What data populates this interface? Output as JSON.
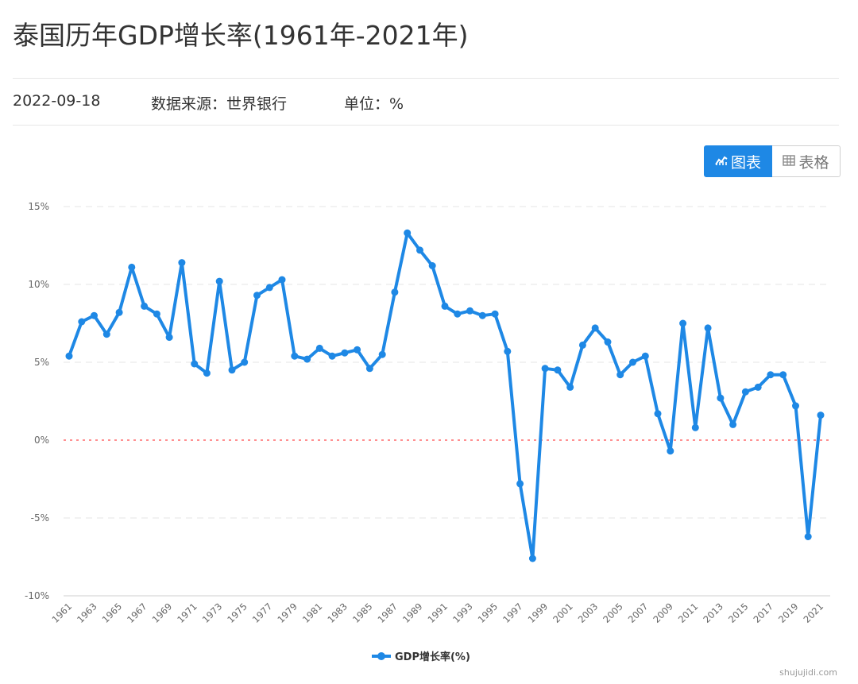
{
  "header": {
    "title": "泰国历年GDP增长率(1961年-2021年)",
    "date": "2022-09-18",
    "source": "数据来源：世界银行",
    "unit": "单位：%"
  },
  "view_toggle": {
    "chart_label": "图表",
    "table_label": "表格",
    "chart_icon": "line-chart-icon",
    "table_icon": "table-icon",
    "active": "chart"
  },
  "watermark": "shujujidi.com",
  "colors": {
    "series": "#1e88e5",
    "zero_line": "#ff4d4f",
    "grid": "#e6e6e6",
    "active_button": "#1e88e5"
  },
  "chart_data": {
    "type": "line",
    "x": [
      "1961",
      "1962",
      "1963",
      "1964",
      "1965",
      "1966",
      "1967",
      "1968",
      "1969",
      "1970",
      "1971",
      "1972",
      "1973",
      "1974",
      "1975",
      "1976",
      "1977",
      "1978",
      "1979",
      "1980",
      "1981",
      "1982",
      "1983",
      "1984",
      "1985",
      "1986",
      "1987",
      "1988",
      "1989",
      "1990",
      "1991",
      "1992",
      "1993",
      "1994",
      "1995",
      "1996",
      "1997",
      "1998",
      "1999",
      "2000",
      "2001",
      "2002",
      "2003",
      "2004",
      "2005",
      "2006",
      "2007",
      "2008",
      "2009",
      "2010",
      "2011",
      "2012",
      "2013",
      "2014",
      "2015",
      "2016",
      "2017",
      "2018",
      "2019",
      "2020",
      "2021"
    ],
    "x_tick_labels": [
      "1961",
      "1963",
      "1965",
      "1967",
      "1969",
      "1971",
      "1973",
      "1975",
      "1977",
      "1979",
      "1981",
      "1983",
      "1985",
      "1987",
      "1989",
      "1991",
      "1993",
      "1995",
      "1997",
      "1999",
      "2001",
      "2003",
      "2005",
      "2007",
      "2009",
      "2011",
      "2013",
      "2015",
      "2017",
      "2019",
      "2021"
    ],
    "series": [
      {
        "name": "GDP增长率(%)",
        "values": [
          5.4,
          7.6,
          8.0,
          6.8,
          8.2,
          11.1,
          8.6,
          8.1,
          6.6,
          11.4,
          4.9,
          4.3,
          10.2,
          4.5,
          5.0,
          9.3,
          9.8,
          10.3,
          5.4,
          5.2,
          5.9,
          5.4,
          5.6,
          5.8,
          4.6,
          5.5,
          9.5,
          13.3,
          12.2,
          11.2,
          8.6,
          8.1,
          8.3,
          8.0,
          8.1,
          5.7,
          -2.8,
          -7.6,
          4.6,
          4.5,
          3.4,
          6.1,
          7.2,
          6.3,
          4.2,
          5.0,
          5.4,
          1.7,
          -0.7,
          7.5,
          0.8,
          7.2,
          2.7,
          1.0,
          3.1,
          3.4,
          4.2,
          4.2,
          2.2,
          -6.2,
          1.6
        ]
      }
    ],
    "ylim": [
      -10,
      15
    ],
    "y_ticks": [
      -10,
      -5,
      0,
      5,
      10,
      15
    ],
    "y_tick_suffix": "%",
    "grid": true,
    "zero_line": true,
    "legend": "bottom-center"
  }
}
